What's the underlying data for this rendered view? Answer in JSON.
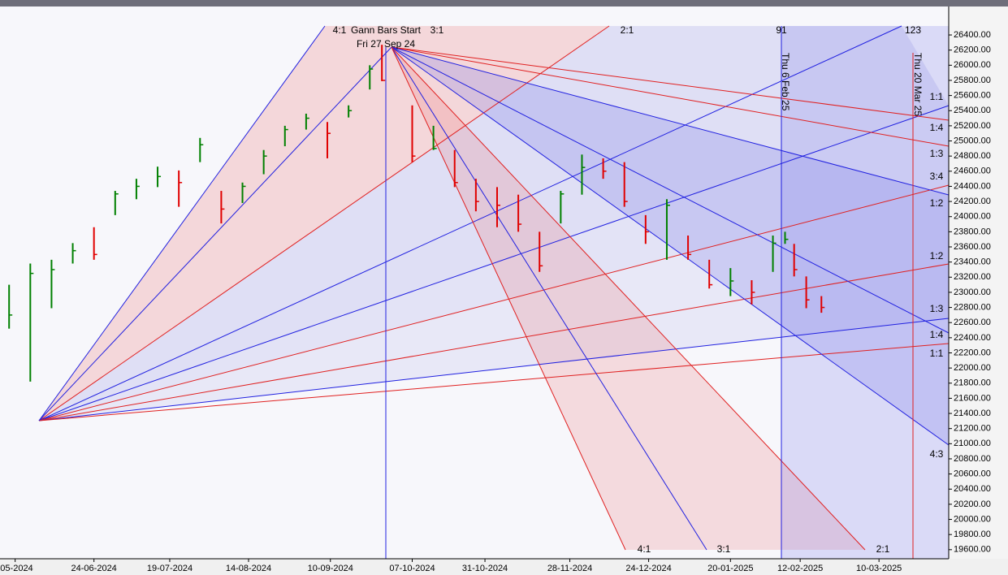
{
  "chart_data": {
    "type": "ohlc",
    "x": [
      "27-05-2024",
      "03-06-2024",
      "10-06-2024",
      "17-06-2024",
      "24-06-2024",
      "01-07-2024",
      "08-07-2024",
      "15-07-2024",
      "22-07-2024",
      "29-07-2024",
      "05-08-2024",
      "12-08-2024",
      "19-08-2024",
      "26-08-2024",
      "02-09-2024",
      "09-09-2024",
      "16-09-2024",
      "23-09-2024",
      "27-09-2024",
      "07-10-2024",
      "14-10-2024",
      "21-10-2024",
      "28-10-2024",
      "04-11-2024",
      "11-11-2024",
      "18-11-2024",
      "25-11-2024",
      "02-12-2024",
      "09-12-2024",
      "16-12-2024",
      "23-12-2024",
      "30-12-2024",
      "06-01-2025",
      "13-01-2025",
      "20-01-2025",
      "27-01-2025",
      "03-02-2025",
      "07-02-2025",
      "10-02-2025",
      "14-02-2025",
      "19-02-2025"
    ],
    "high": [
      23100,
      23380,
      23430,
      23650,
      23860,
      24340,
      24500,
      24660,
      24610,
      25040,
      24340,
      24450,
      24880,
      25200,
      25360,
      25250,
      25470,
      26000,
      26270,
      25470,
      25200,
      24880,
      24500,
      24390,
      24290,
      23800,
      24340,
      24820,
      24770,
      24720,
      24020,
      24230,
      23750,
      23430,
      23320,
      23160,
      23750,
      23800,
      23640,
      23210,
      22950
    ],
    "low": [
      22520,
      21820,
      22790,
      23380,
      23430,
      24020,
      24230,
      24390,
      24130,
      24720,
      23910,
      24180,
      24560,
      24930,
      25150,
      24770,
      25310,
      25680,
      25790,
      24720,
      24880,
      24390,
      24070,
      23860,
      23800,
      23270,
      23910,
      24290,
      24500,
      24130,
      23640,
      23430,
      23430,
      23050,
      22950,
      22840,
      23270,
      23640,
      23210,
      22790,
      22730
    ],
    "close": [
      22700,
      23250,
      23300,
      23550,
      23500,
      24300,
      24400,
      24530,
      24450,
      24950,
      24100,
      24400,
      24800,
      25150,
      25300,
      25100,
      25400,
      25950,
      25800,
      24800,
      24900,
      24450,
      24200,
      24150,
      23900,
      23350,
      24300,
      24650,
      24600,
      24200,
      23800,
      24150,
      23500,
      23100,
      23150,
      23000,
      23650,
      23700,
      23300,
      22900,
      22800
    ],
    "up_color": "#008000",
    "down_color": "#e00000",
    "xlim": [
      "24-05-2024",
      "02-04-2025"
    ],
    "xticks": [
      {
        "value": "29-05-2024",
        "label": "-05-2024"
      },
      "24-06-2024",
      "19-07-2024",
      "14-08-2024",
      "10-09-2024",
      "07-10-2024",
      "31-10-2024",
      "28-11-2024",
      "24-12-2024",
      "20-01-2025",
      "12-02-2025",
      "10-03-2025"
    ],
    "ylim": [
      19480,
      26540
    ],
    "yticks": [
      {
        "value": 19600,
        "label": "19600.00"
      },
      {
        "value": 19800,
        "label": "19800.00"
      },
      {
        "value": 20000,
        "label": "20000.00"
      },
      {
        "value": 20200,
        "label": "20200.00"
      },
      {
        "value": 20400,
        "label": "20400.00"
      },
      {
        "value": 20600,
        "label": "20600.00"
      },
      {
        "value": 20800,
        "label": "20800.00"
      },
      {
        "value": 21000,
        "label": "21000.00"
      },
      {
        "value": 21200,
        "label": "21200.00"
      },
      {
        "value": 21400,
        "label": "21400.00"
      },
      {
        "value": 21600,
        "label": "21600.00"
      },
      {
        "value": 21800,
        "label": "21800.00"
      },
      {
        "value": 22000,
        "label": "22000.00"
      },
      {
        "value": 22200,
        "label": "22200.00"
      },
      {
        "value": 22400,
        "label": "22400.00"
      },
      {
        "value": 22600,
        "label": "22600.00"
      },
      {
        "value": 22800,
        "label": "22800.00"
      },
      {
        "value": 23000,
        "label": "23000.00"
      },
      {
        "value": 23200,
        "label": "23200.00"
      },
      {
        "value": 23400,
        "label": "23400.00"
      },
      {
        "value": 23600,
        "label": "23600.00"
      },
      {
        "value": 23800,
        "label": "23800.00"
      },
      {
        "value": 24000,
        "label": "24000.00"
      },
      {
        "value": 24200,
        "label": "24200.00"
      },
      {
        "value": 24400,
        "label": "24400.00"
      },
      {
        "value": 24600,
        "label": "24600.00"
      },
      {
        "value": 24800,
        "label": "24800.00"
      },
      {
        "value": 25000,
        "label": "25000.00"
      },
      {
        "value": 25200,
        "label": "25200.00"
      },
      {
        "value": 25400,
        "label": "25400.00"
      },
      {
        "value": 25600,
        "label": "25600.00"
      },
      {
        "value": 25800,
        "label": "25800.00"
      },
      {
        "value": 26000,
        "label": "26000.00"
      },
      {
        "value": 26200,
        "label": "26200.00"
      },
      {
        "value": 26400,
        "label": "26400.00"
      }
    ],
    "annotations": [
      "4:1",
      "Gann Bars Start",
      "3:1",
      "Fri 27 Sep 24",
      "2:1",
      "91",
      "123",
      "4:1",
      "3:1",
      "2:1"
    ],
    "date_markers": [
      "Thu 6 Feb 25",
      "Thu 20 Mar 25"
    ],
    "fan_labels": [
      "1:1",
      "1:4",
      "1:3",
      "3:4",
      "1:2",
      "1:2",
      "1:3",
      "1:4",
      "1:1",
      "4:3"
    ]
  }
}
